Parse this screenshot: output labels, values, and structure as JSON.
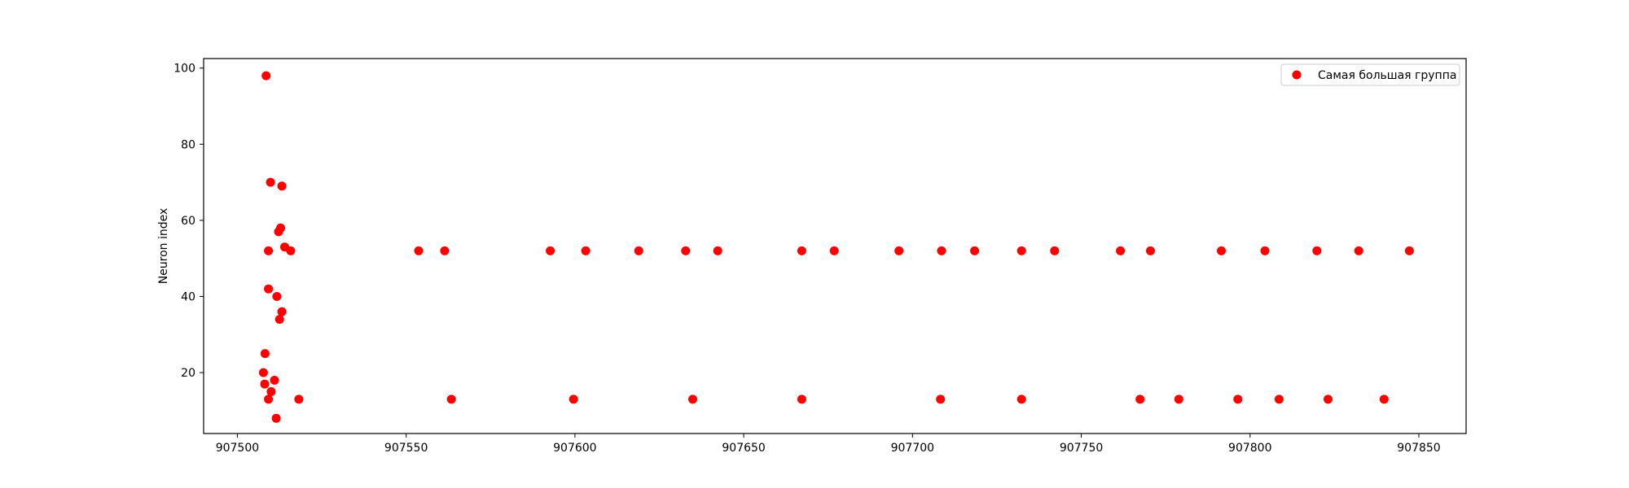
{
  "chart_data": {
    "type": "scatter",
    "title": "",
    "xlabel": "",
    "ylabel": "Neuron index",
    "xlim": [
      907490,
      907864
    ],
    "ylim": [
      4,
      102.5
    ],
    "xticks": [
      907500,
      907550,
      907600,
      907650,
      907700,
      907750,
      907800,
      907850
    ],
    "yticks": [
      20,
      40,
      60,
      80,
      100
    ],
    "grid": false,
    "legend_position": "top-right",
    "series": [
      {
        "name": "Самая большая группа",
        "color": "#ff0000",
        "points": [
          [
            907508.5,
            98
          ],
          [
            907509.8,
            70
          ],
          [
            907513.2,
            69
          ],
          [
            907512.2,
            57
          ],
          [
            907512.8,
            58
          ],
          [
            907514.0,
            53
          ],
          [
            907509.2,
            52
          ],
          [
            907515.8,
            52
          ],
          [
            907509.2,
            42
          ],
          [
            907511.7,
            40
          ],
          [
            907513.2,
            36
          ],
          [
            907512.5,
            34
          ],
          [
            907508.2,
            25
          ],
          [
            907507.7,
            20
          ],
          [
            907511.0,
            18
          ],
          [
            907508.1,
            17
          ],
          [
            907510.0,
            15
          ],
          [
            907509.2,
            13
          ],
          [
            907518.2,
            13
          ],
          [
            907511.5,
            8
          ],
          [
            907553.7,
            52
          ],
          [
            907561.4,
            52
          ],
          [
            907592.7,
            52
          ],
          [
            907603.2,
            52
          ],
          [
            907618.9,
            52
          ],
          [
            907632.8,
            52
          ],
          [
            907642.3,
            52
          ],
          [
            907667.2,
            52
          ],
          [
            907676.8,
            52
          ],
          [
            907696.0,
            52
          ],
          [
            907708.6,
            52
          ],
          [
            907718.4,
            52
          ],
          [
            907732.3,
            52
          ],
          [
            907742.1,
            52
          ],
          [
            907761.6,
            52
          ],
          [
            907770.5,
            52
          ],
          [
            907791.5,
            52
          ],
          [
            907804.4,
            52
          ],
          [
            907819.8,
            52
          ],
          [
            907832.2,
            52
          ],
          [
            907847.2,
            52
          ],
          [
            907563.4,
            13
          ],
          [
            907599.6,
            13
          ],
          [
            907634.9,
            13
          ],
          [
            907667.2,
            13
          ],
          [
            907708.3,
            13
          ],
          [
            907732.3,
            13
          ],
          [
            907767.4,
            13
          ],
          [
            907778.9,
            13
          ],
          [
            907796.4,
            13
          ],
          [
            907808.6,
            13
          ],
          [
            907823.1,
            13
          ],
          [
            907839.7,
            13
          ]
        ]
      }
    ]
  }
}
